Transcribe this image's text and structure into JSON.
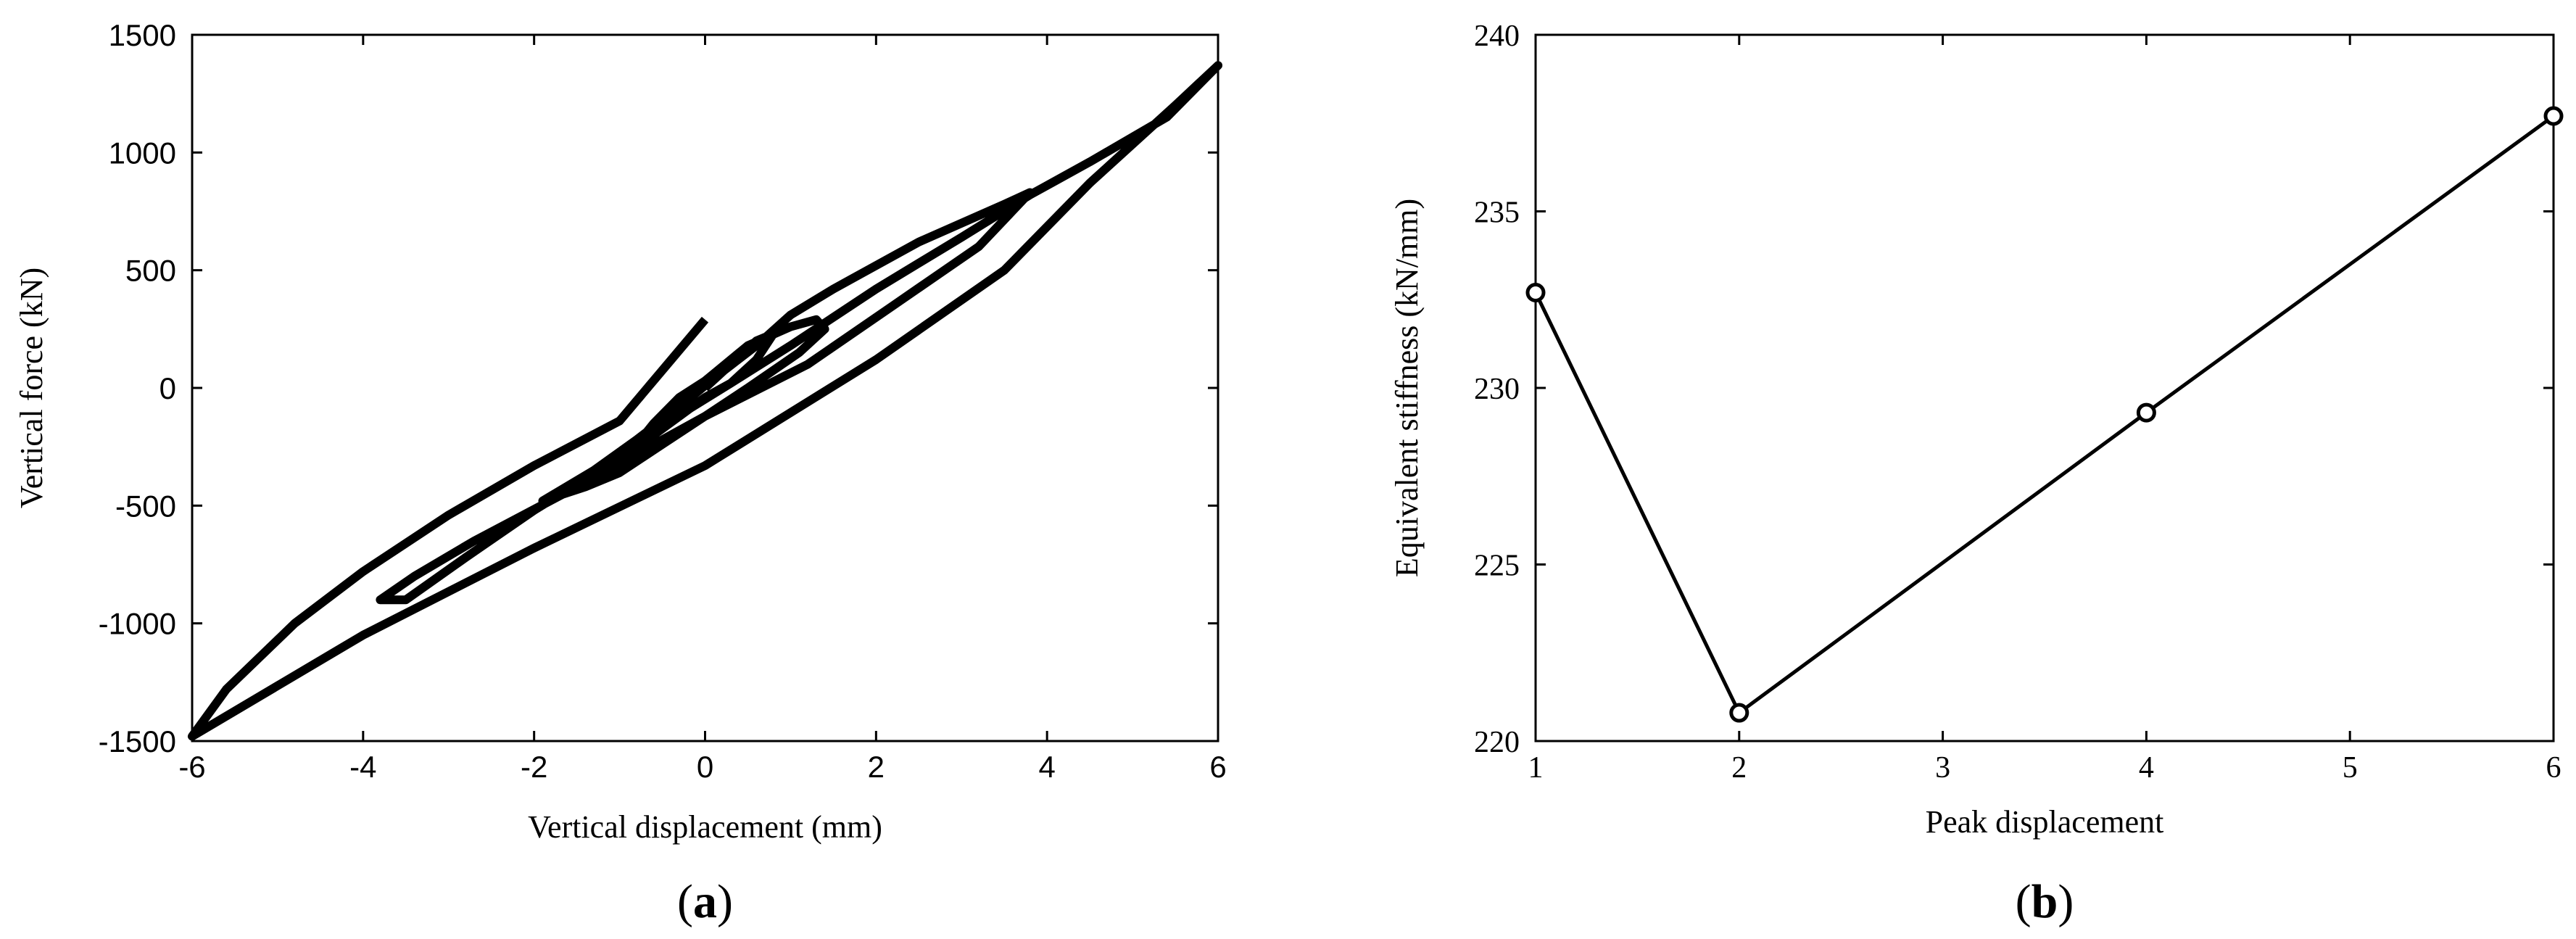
{
  "chart_data": [
    {
      "type": "line",
      "panel_label": "a",
      "xlabel": "Vertical displacement (mm)",
      "ylabel": "Vertical force (kN)",
      "xlim": [
        -6,
        6
      ],
      "ylim": [
        -1500,
        1500
      ],
      "xticks": [
        -6,
        -4,
        -2,
        0,
        2,
        4,
        6
      ],
      "yticks": [
        -1500,
        -1000,
        -500,
        0,
        500,
        1000,
        1500
      ],
      "grid": false,
      "series": [
        {
          "style": "thick-black",
          "x": [
            0,
            0.3,
            0.6,
            0.8,
            0.6,
            0.3,
            0,
            -0.3,
            -0.6,
            -0.8,
            -0.6,
            -0.3,
            0,
            0.5,
            1.0,
            1.3,
            1.4,
            1.1,
            0.5,
            0,
            -0.5,
            -1.0,
            -1.4,
            -1.9,
            -1.3,
            -0.8,
            -0.3,
            0.1,
            0.6,
            1.0,
            1.5,
            2.5,
            3.5,
            3.8,
            3.2,
            2.2,
            1.2,
            0,
            -1.5,
            -2.7,
            -3.4,
            -3.8,
            -3.5,
            -2.8,
            -2.0,
            -1.2,
            -0.5,
            0.3,
            1.0,
            2.0,
            3.0,
            3.8,
            4.5,
            5.4,
            6.0,
            5.5,
            4.5,
            3.5,
            2.0,
            0,
            -2.0,
            -4.0,
            -6.0,
            -5.6,
            -4.8,
            -4.0,
            -3.0,
            -2.0,
            -1.0,
            0
          ],
          "y": [
            0,
            100,
            200,
            230,
            120,
            20,
            -40,
            -120,
            -200,
            -240,
            -150,
            -40,
            30,
            180,
            260,
            290,
            250,
            150,
            0,
            -120,
            -240,
            -360,
            -420,
            -480,
            -350,
            -220,
            -80,
            40,
            180,
            310,
            420,
            620,
            780,
            830,
            600,
            350,
            100,
            -120,
            -420,
            -650,
            -800,
            -900,
            -900,
            -720,
            -520,
            -340,
            -160,
            20,
            180,
            420,
            640,
            820,
            960,
            1150,
            1370,
            1200,
            870,
            500,
            120,
            -330,
            -680,
            -1050,
            -1480,
            -1280,
            -1000,
            -780,
            -540,
            -330,
            -140,
            290
          ]
        }
      ]
    },
    {
      "type": "line",
      "panel_label": "b",
      "xlabel": "Peak displacement",
      "ylabel": "Equivalent stiffness (kN/mm)",
      "categories": [
        "1",
        "2",
        "3",
        "4",
        "5",
        "6"
      ],
      "xlim": [
        1,
        6
      ],
      "ylim": [
        220,
        240
      ],
      "xticks": [
        1,
        2,
        3,
        4,
        5,
        6
      ],
      "yticks": [
        220,
        225,
        230,
        235,
        240
      ],
      "grid": false,
      "series": [
        {
          "style": "black-line-circle-markers",
          "x": [
            1,
            2,
            4,
            6
          ],
          "y": [
            232.7,
            220.8,
            229.3,
            237.7
          ]
        }
      ]
    }
  ]
}
